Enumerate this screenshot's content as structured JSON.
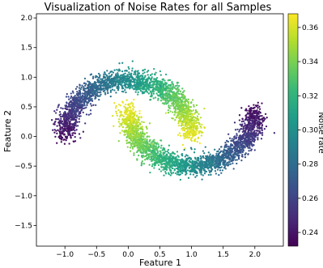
{
  "chart_data": {
    "type": "scatter",
    "title": "Visualization of Noise Rates for all Samples",
    "xlabel": "Feature 1",
    "ylabel": "Feature 2",
    "xlim": [
      -1.45,
      2.45
    ],
    "ylim": [
      -1.85,
      2.07
    ],
    "xticks": [
      -1.0,
      -0.5,
      0.0,
      0.5,
      1.0,
      1.5,
      2.0
    ],
    "xtick_labels": [
      "−1.0",
      "−0.5",
      "0.0",
      "0.5",
      "1.0",
      "1.5",
      "2.0"
    ],
    "yticks": [
      -1.5,
      -1.0,
      -0.5,
      0.0,
      0.5,
      1.0,
      1.5,
      2.0
    ],
    "ytick_labels": [
      "−1.5",
      "−1.0",
      "−0.5",
      "0.0",
      "0.5",
      "1.0",
      "1.5",
      "2.0"
    ],
    "grid": false,
    "colormap": "viridis",
    "colorbar": {
      "label": "Noise rate",
      "range": [
        0.232,
        0.368
      ],
      "ticks": [
        0.24,
        0.26,
        0.28,
        0.3,
        0.32,
        0.34,
        0.36
      ],
      "tick_labels": [
        "0.24",
        "0.26",
        "0.28",
        "0.30",
        "0.32",
        "0.34",
        "0.36"
      ]
    },
    "series": [
      {
        "shape": "upper moon",
        "x_range": [
          -1.15,
          1.15
        ],
        "noise_rate_range": [
          0.235,
          0.365
        ],
        "description_points": [
          {
            "x": -1.0,
            "y": 0.05,
            "noise_rate": 0.235
          },
          {
            "x": -0.5,
            "y": 0.87,
            "noise_rate": 0.27
          },
          {
            "x": 0.0,
            "y": 1.0,
            "noise_rate": 0.3
          },
          {
            "x": 0.5,
            "y": 0.87,
            "noise_rate": 0.33
          },
          {
            "x": 1.0,
            "y": 0.05,
            "noise_rate": 0.365
          }
        ]
      },
      {
        "shape": "lower moon",
        "x_range": [
          -0.15,
          2.15
        ],
        "noise_rate_range": [
          0.235,
          0.365
        ],
        "description_points": [
          {
            "x": 0.0,
            "y": 0.45,
            "noise_rate": 0.365
          },
          {
            "x": 0.5,
            "y": -0.37,
            "noise_rate": 0.33
          },
          {
            "x": 1.0,
            "y": -0.5,
            "noise_rate": 0.29
          },
          {
            "x": 1.5,
            "y": -0.37,
            "noise_rate": 0.27
          },
          {
            "x": 2.0,
            "y": 0.45,
            "noise_rate": 0.235
          }
        ]
      }
    ]
  },
  "colors": {
    "viridis": [
      "#440154",
      "#482878",
      "#3e4989",
      "#31688e",
      "#26828e",
      "#1f9e89",
      "#35b779",
      "#6ece58",
      "#b5de2b",
      "#fde725"
    ]
  }
}
